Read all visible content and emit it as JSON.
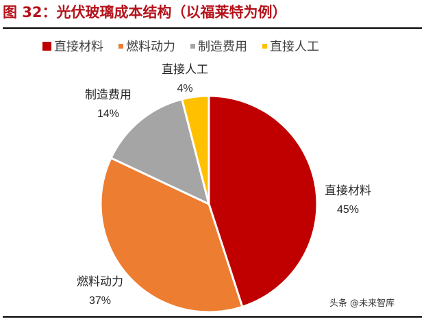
{
  "title": "图 32：光伏玻璃成本结构（以福莱特为例）",
  "watermark": "头条 @未来智库",
  "legend": [
    {
      "label": "直接材料",
      "color": "#c00000"
    },
    {
      "label": "燃料动力",
      "color": "#ed7d31"
    },
    {
      "label": "制造费用",
      "color": "#a5a5a5"
    },
    {
      "label": "直接人工",
      "color": "#ffc000"
    }
  ],
  "labels": {
    "direct_materials": {
      "name": "直接材料",
      "pct": "45%"
    },
    "fuel_power": {
      "name": "燃料动力",
      "pct": "37%"
    },
    "manufacturing": {
      "name": "制造费用",
      "pct": "14%"
    },
    "direct_labor": {
      "name": "直接人工",
      "pct": "4%"
    }
  },
  "chart_data": {
    "type": "pie",
    "title": "图 32：光伏玻璃成本结构（以福莱特为例）",
    "categories": [
      "直接材料",
      "燃料动力",
      "制造费用",
      "直接人工"
    ],
    "values": [
      45,
      37,
      14,
      4
    ],
    "unit": "%",
    "colors": [
      "#c00000",
      "#ed7d31",
      "#a5a5a5",
      "#ffc000"
    ],
    "start_angle": "12 o'clock, clockwise",
    "legend_position": "top",
    "data_labels": [
      "直接材料 45%",
      "燃料动力 37%",
      "制造费用 14%",
      "直接人工 4%"
    ]
  }
}
